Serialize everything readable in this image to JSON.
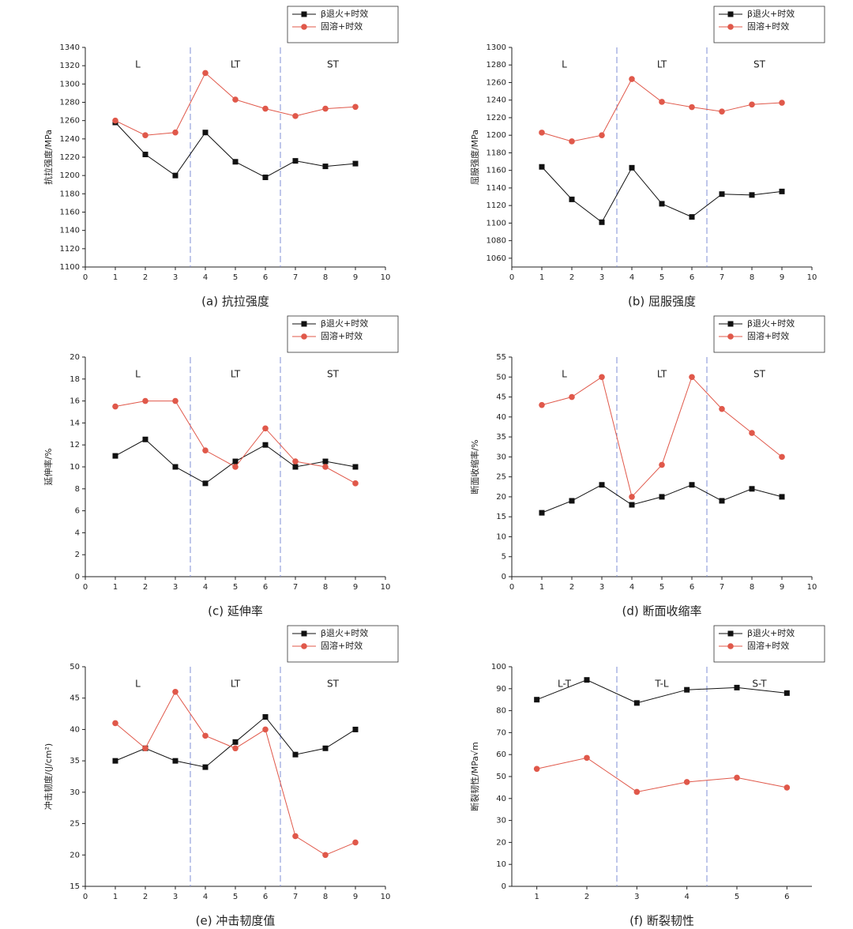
{
  "chart_data": [
    {
      "type": "line",
      "title": "(a) 抗拉强度",
      "ylabel": "抗拉强度/MPa",
      "x": [
        1,
        2,
        3,
        4,
        5,
        6,
        7,
        8,
        9
      ],
      "xlim": [
        0,
        10
      ],
      "xticks": [
        0,
        1,
        2,
        3,
        4,
        5,
        6,
        7,
        8,
        9,
        10
      ],
      "ylim": [
        1100,
        1340
      ],
      "yticks": [
        1100,
        1120,
        1140,
        1160,
        1180,
        1200,
        1220,
        1240,
        1260,
        1280,
        1300,
        1320,
        1340
      ],
      "dividers": [
        3.5,
        6.5
      ],
      "regions": [
        "L",
        "LT",
        "ST"
      ],
      "series": [
        {
          "name": "β退火+时效",
          "color": "#111111",
          "marker": "square",
          "values": [
            1258,
            1223,
            1200,
            1247,
            1215,
            1198,
            1216,
            1210,
            1213
          ]
        },
        {
          "name": "固溶+时效",
          "color": "#e0584a",
          "marker": "circle",
          "values": [
            1260,
            1244,
            1247,
            1312,
            1283,
            1273,
            1265,
            1273,
            1275
          ]
        }
      ]
    },
    {
      "type": "line",
      "title": "(b) 屈服强度",
      "ylabel": "屈服强度/MPa",
      "x": [
        1,
        2,
        3,
        4,
        5,
        6,
        7,
        8,
        9
      ],
      "xlim": [
        0,
        10
      ],
      "xticks": [
        0,
        1,
        2,
        3,
        4,
        5,
        6,
        7,
        8,
        9,
        10
      ],
      "ylim": [
        1050,
        1300
      ],
      "yticks": [
        1060,
        1080,
        1100,
        1120,
        1140,
        1160,
        1180,
        1200,
        1220,
        1240,
        1260,
        1280,
        1300
      ],
      "dividers": [
        3.5,
        6.5
      ],
      "regions": [
        "L",
        "LT",
        "ST"
      ],
      "series": [
        {
          "name": "β退火+时效",
          "color": "#111111",
          "marker": "square",
          "values": [
            1164,
            1127,
            1101,
            1163,
            1122,
            1107,
            1133,
            1132,
            1136
          ]
        },
        {
          "name": "固溶+时效",
          "color": "#e0584a",
          "marker": "circle",
          "values": [
            1203,
            1193,
            1200,
            1264,
            1238,
            1232,
            1227,
            1235,
            1237
          ]
        }
      ]
    },
    {
      "type": "line",
      "title": "(c) 延伸率",
      "ylabel": "延伸率/%",
      "x": [
        1,
        2,
        3,
        4,
        5,
        6,
        7,
        8,
        9
      ],
      "xlim": [
        0,
        10
      ],
      "xticks": [
        0,
        1,
        2,
        3,
        4,
        5,
        6,
        7,
        8,
        9,
        10
      ],
      "ylim": [
        0,
        20
      ],
      "yticks": [
        0,
        2,
        4,
        6,
        8,
        10,
        12,
        14,
        16,
        18,
        20
      ],
      "dividers": [
        3.5,
        6.5
      ],
      "regions": [
        "L",
        "LT",
        "ST"
      ],
      "series": [
        {
          "name": "β退火+时效",
          "color": "#111111",
          "marker": "square",
          "values": [
            11,
            12.5,
            10,
            8.5,
            10.5,
            12,
            10,
            10.5,
            10
          ]
        },
        {
          "name": "固溶+时效",
          "color": "#e0584a",
          "marker": "circle",
          "values": [
            15.5,
            16,
            16,
            11.5,
            10,
            13.5,
            10.5,
            10,
            8.5
          ]
        }
      ]
    },
    {
      "type": "line",
      "title": "(d) 断面收缩率",
      "ylabel": "断面收缩率/%",
      "x": [
        1,
        2,
        3,
        4,
        5,
        6,
        7,
        8,
        9
      ],
      "xlim": [
        0,
        10
      ],
      "xticks": [
        0,
        1,
        2,
        3,
        4,
        5,
        6,
        7,
        8,
        9,
        10
      ],
      "ylim": [
        0,
        55
      ],
      "yticks": [
        0,
        5,
        10,
        15,
        20,
        25,
        30,
        35,
        40,
        45,
        50,
        55
      ],
      "dividers": [
        3.5,
        6.5
      ],
      "regions": [
        "L",
        "LT",
        "ST"
      ],
      "series": [
        {
          "name": "β退火+时效",
          "color": "#111111",
          "marker": "square",
          "values": [
            16,
            19,
            23,
            18,
            20,
            23,
            19,
            22,
            20
          ]
        },
        {
          "name": "固溶+时效",
          "color": "#e0584a",
          "marker": "circle",
          "values": [
            43,
            45,
            50,
            20,
            28,
            50,
            42,
            36,
            30
          ]
        }
      ]
    },
    {
      "type": "line",
      "title": "(e) 冲击韧度值",
      "ylabel": "冲击韧度/(J/cm²)",
      "x": [
        1,
        2,
        3,
        4,
        5,
        6,
        7,
        8,
        9
      ],
      "xlim": [
        0,
        10
      ],
      "xticks": [
        0,
        1,
        2,
        3,
        4,
        5,
        6,
        7,
        8,
        9,
        10
      ],
      "ylim": [
        15,
        50
      ],
      "yticks": [
        15,
        20,
        25,
        30,
        35,
        40,
        45,
        50
      ],
      "dividers": [
        3.5,
        6.5
      ],
      "regions": [
        "L",
        "LT",
        "ST"
      ],
      "series": [
        {
          "name": "β退火+时效",
          "color": "#111111",
          "marker": "square",
          "values": [
            35,
            37,
            35,
            34,
            38,
            42,
            36,
            37,
            40
          ]
        },
        {
          "name": "固溶+时效",
          "color": "#e0584a",
          "marker": "circle",
          "values": [
            41,
            37,
            46,
            39,
            37,
            40,
            23,
            20,
            22
          ]
        }
      ]
    },
    {
      "type": "line",
      "title": "(f) 断裂韧性",
      "ylabel": "断裂韧性/MPa√m",
      "x": [
        1,
        2,
        3,
        4,
        5,
        6
      ],
      "xlim": [
        0.5,
        6.5
      ],
      "xticks": [
        1,
        2,
        3,
        4,
        5,
        6
      ],
      "ylim": [
        0,
        100
      ],
      "yticks": [
        0,
        10,
        20,
        30,
        40,
        50,
        60,
        70,
        80,
        90,
        100
      ],
      "dividers": [
        2.6,
        4.4
      ],
      "regions": [
        "L-T",
        "T-L",
        "S-T"
      ],
      "series": [
        {
          "name": "β退火+时效",
          "color": "#111111",
          "marker": "square",
          "values": [
            85,
            94,
            83.5,
            89.5,
            90.5,
            88
          ]
        },
        {
          "name": "固溶+时效",
          "color": "#e0584a",
          "marker": "circle",
          "values": [
            53.5,
            58.5,
            43,
            47.5,
            49.5,
            45
          ]
        }
      ]
    }
  ]
}
